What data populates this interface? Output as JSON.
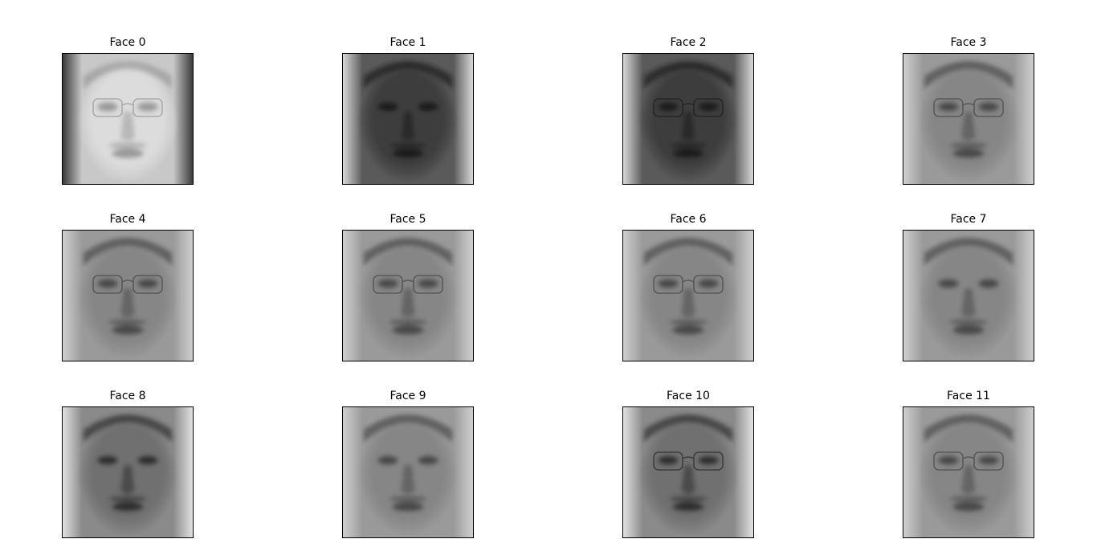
{
  "figure": {
    "faces": [
      {
        "title": "Face 0",
        "tone": "light",
        "glasses": true
      },
      {
        "title": "Face 1",
        "tone": "dark",
        "glasses": false
      },
      {
        "title": "Face 2",
        "tone": "dark",
        "glasses": true
      },
      {
        "title": "Face 3",
        "tone": "medium",
        "glasses": true
      },
      {
        "title": "Face 4",
        "tone": "medium",
        "glasses": true
      },
      {
        "title": "Face 5",
        "tone": "medium",
        "glasses": true
      },
      {
        "title": "Face 6",
        "tone": "medium",
        "glasses": true
      },
      {
        "title": "Face 7",
        "tone": "medium",
        "glasses": false
      },
      {
        "title": "Face 8",
        "tone": "medium-dark",
        "glasses": false
      },
      {
        "title": "Face 9",
        "tone": "medium",
        "glasses": false
      },
      {
        "title": "Face 10",
        "tone": "medium-dark",
        "glasses": true
      },
      {
        "title": "Face 11",
        "tone": "medium",
        "glasses": true
      }
    ]
  }
}
